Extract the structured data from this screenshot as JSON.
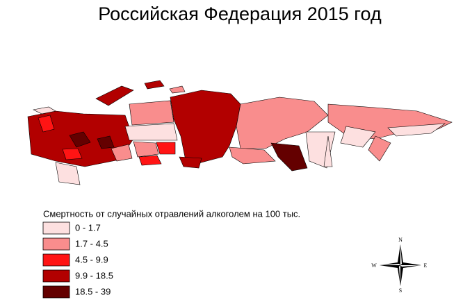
{
  "title": "Российская Федерация 2015 год",
  "legend": {
    "title": "Смертность от случайных отравлений алкоголем на 100 тыс.",
    "items": [
      {
        "label": "0 - 1.7",
        "color": "#fde0e0"
      },
      {
        "label": "1.7 - 4.5",
        "color": "#f98d8d"
      },
      {
        "label": "4.5 - 9.9",
        "color": "#ff1414"
      },
      {
        "label": "9.9 - 18.5",
        "color": "#b20000"
      },
      {
        "label": "18.5 - 39",
        "color": "#640000"
      }
    ]
  },
  "compass": {
    "n": "N",
    "e": "E",
    "s": "S",
    "w": "W"
  }
}
